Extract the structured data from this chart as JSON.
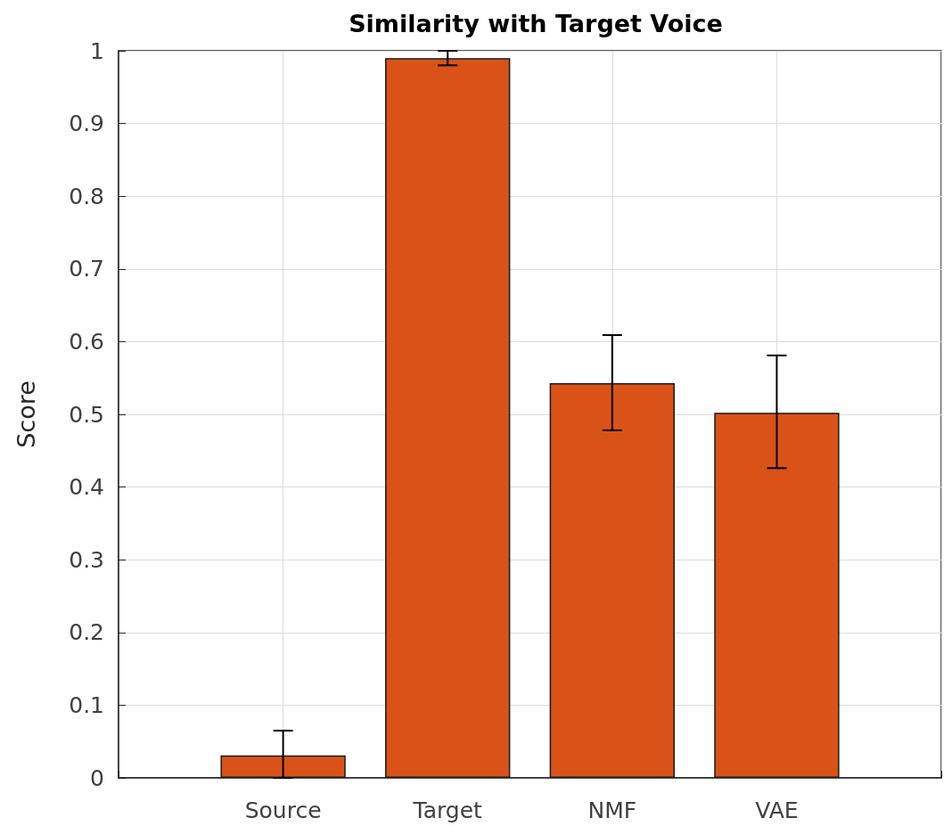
{
  "chart_data": {
    "type": "bar",
    "title": "Similarity with Target Voice",
    "ylabel": "Score",
    "categories": [
      null,
      "Source",
      "Target",
      "NMF",
      "VAE",
      null
    ],
    "values": [
      null,
      0.031,
      0.99,
      0.543,
      0.502,
      null
    ],
    "errors": [
      null,
      [
        0,
        0.065
      ],
      [
        0.98,
        1.0
      ],
      [
        0.478,
        0.609
      ],
      [
        0.426,
        0.581
      ],
      null
    ],
    "color": "#d95319",
    "ylim": [
      0,
      1
    ],
    "yticks": [
      0,
      0.1,
      0.2,
      0.3,
      0.4,
      0.5,
      0.6,
      0.7,
      0.8,
      0.9,
      1
    ],
    "grid": true
  }
}
